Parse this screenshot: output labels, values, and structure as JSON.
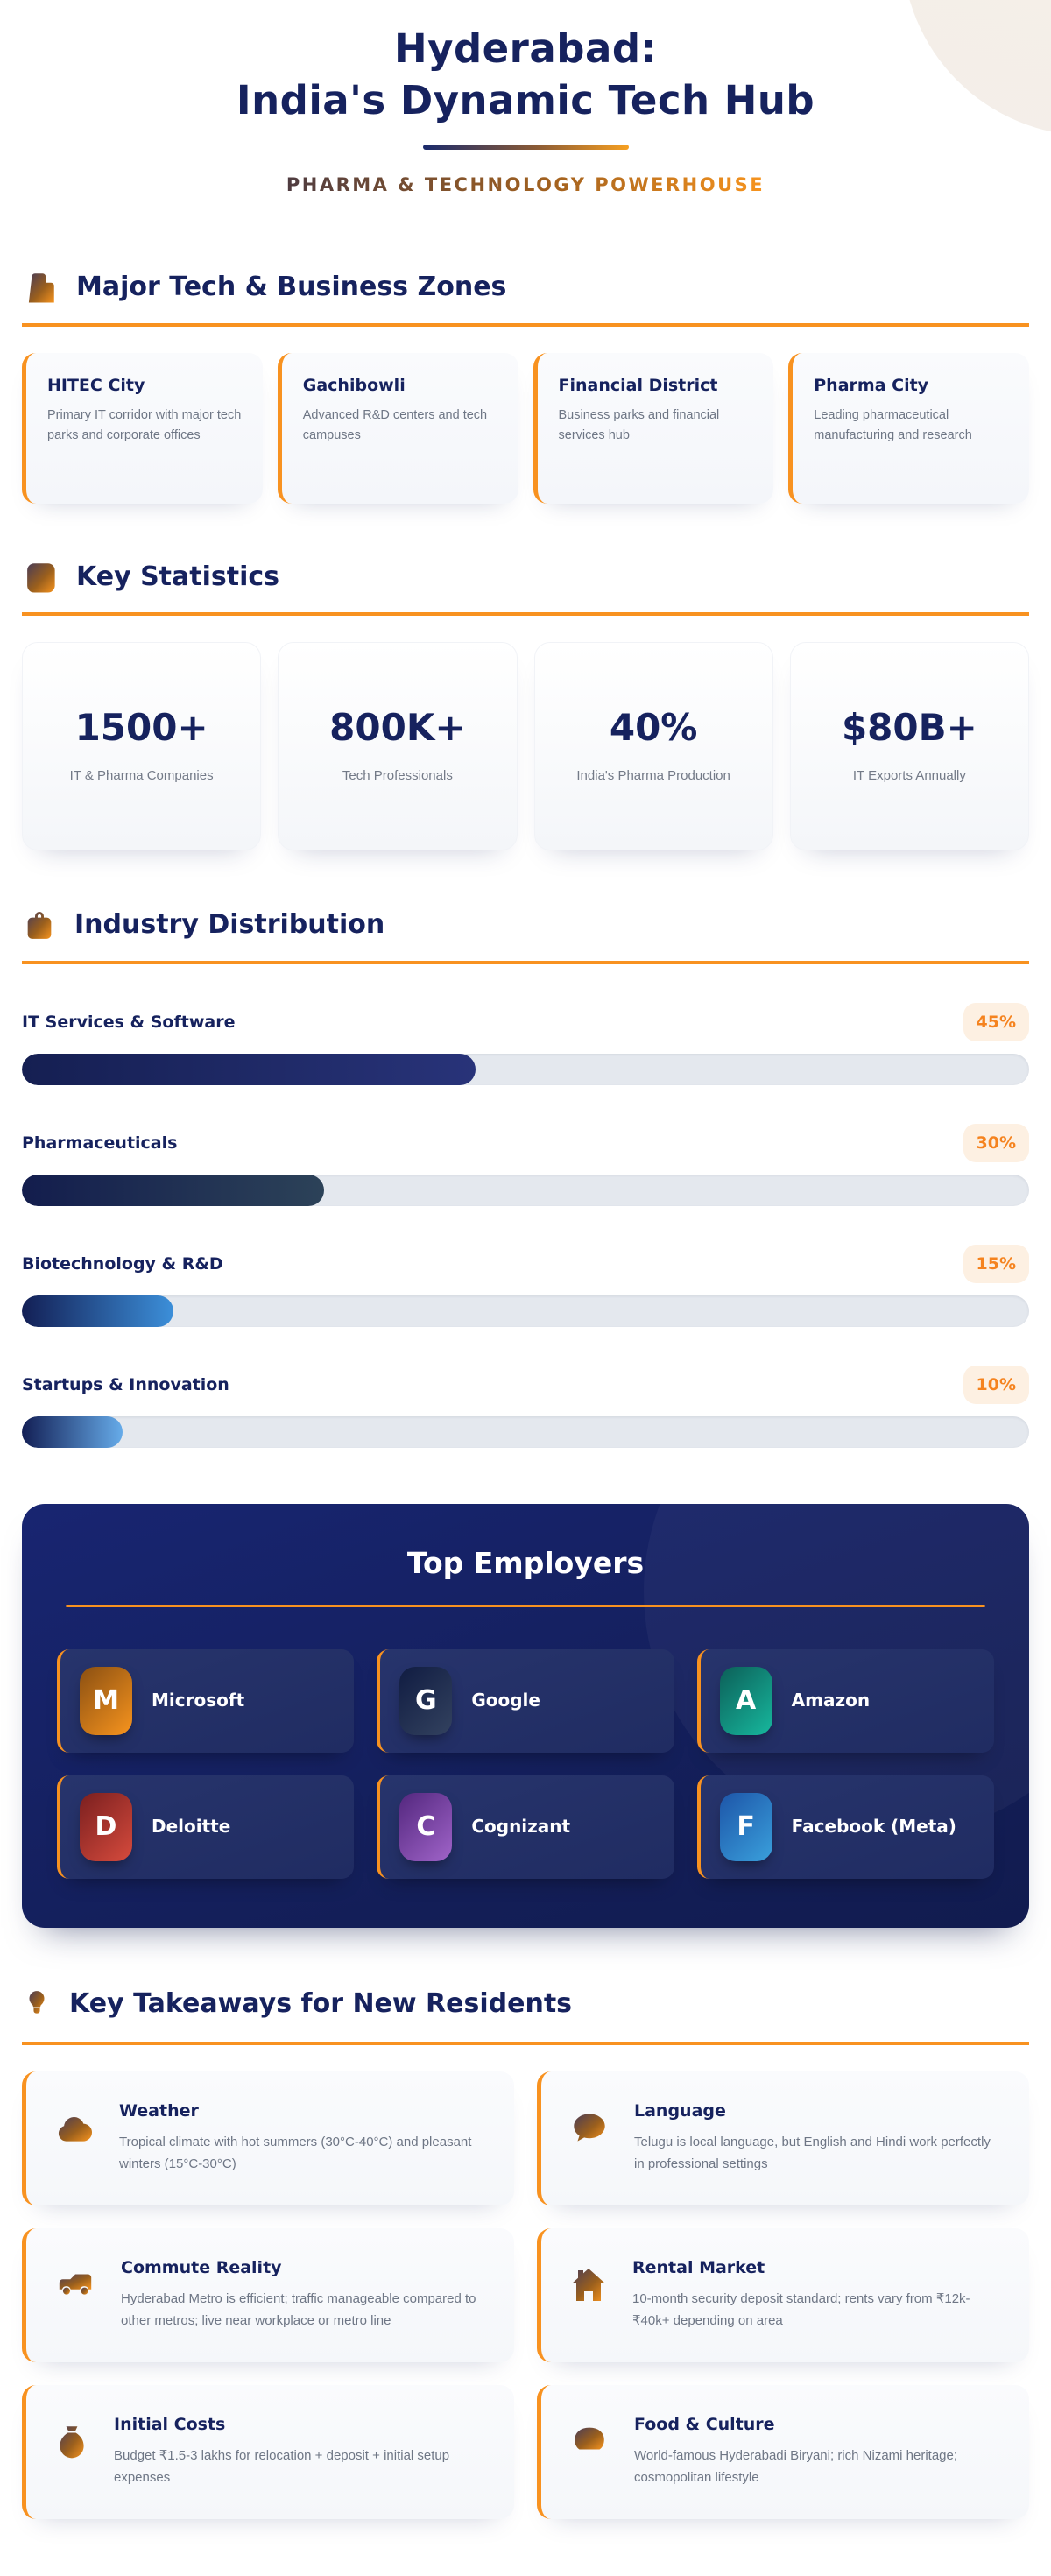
{
  "header": {
    "title_line1": "Hyderabad:",
    "title_line2": "India's Dynamic Tech Hub",
    "subtitle": "PHARMA & TECHNOLOGY POWERHOUSE"
  },
  "colors": {
    "navy": "#16225e",
    "orange": "#f89220",
    "badge_text": "#f5831f",
    "badge_bg": "#fdf0e2",
    "body_text": "#6e7685",
    "panel_bg": "#131e57",
    "track": "#e4e8ee"
  },
  "zones": {
    "title": "Major Tech & Business Zones",
    "cards": [
      {
        "title": "HITEC City",
        "desc": "Primary IT corridor with major tech parks and corporate offices"
      },
      {
        "title": "Gachibowli",
        "desc": "Advanced R&D centers and tech campuses"
      },
      {
        "title": "Financial District",
        "desc": "Business parks and financial services hub"
      },
      {
        "title": "Pharma City",
        "desc": "Leading pharmaceutical manufacturing and research"
      }
    ]
  },
  "stats": {
    "title": "Key Statistics",
    "cards": [
      {
        "value": "1500+",
        "label": "IT & Pharma Companies"
      },
      {
        "value": "800K+",
        "label": "Tech Professionals"
      },
      {
        "value": "40%",
        "label": "India's Pharma Production"
      },
      {
        "value": "$80B+",
        "label": "IT Exports Annually"
      }
    ]
  },
  "industry": {
    "title": "Industry Distribution",
    "bars": [
      {
        "label": "IT Services & Software",
        "pct": 45,
        "badge": "45%",
        "grad": {
          "from": "#151f52",
          "to": "#283379"
        }
      },
      {
        "label": "Pharmaceuticals",
        "pct": 30,
        "badge": "30%",
        "grad": {
          "from": "#131d4d",
          "to": "#2c4258"
        }
      },
      {
        "label": "Biotechnology & R&D",
        "pct": 15,
        "badge": "15%",
        "grad": {
          "from": "#131f55",
          "to": "#3c8fd9"
        }
      },
      {
        "label": "Startups & Innovation",
        "pct": 10,
        "badge": "10%",
        "grad": {
          "from": "#131f55",
          "to": "#66abe9"
        }
      }
    ]
  },
  "chart_data": {
    "type": "bar",
    "title": "Industry Distribution",
    "categories": [
      "IT Services & Software",
      "Pharmaceuticals",
      "Biotechnology & R&D",
      "Startups & Innovation"
    ],
    "values": [
      45,
      30,
      15,
      10
    ],
    "unit": "%",
    "xlim": [
      0,
      100
    ]
  },
  "employers": {
    "title": "Top Employers",
    "items": [
      {
        "letter": "M",
        "name": "Microsoft",
        "grad": {
          "from": "#8a4f12",
          "to": "#f7941e"
        }
      },
      {
        "letter": "G",
        "name": "Google",
        "grad": {
          "from": "#101c42",
          "to": "#33425f"
        }
      },
      {
        "letter": "A",
        "name": "Amazon",
        "grad": {
          "from": "#0c5f58",
          "to": "#17b89e"
        }
      },
      {
        "letter": "D",
        "name": "Deloitte",
        "grad": {
          "from": "#7a1f1f",
          "to": "#d64b3d"
        }
      },
      {
        "letter": "C",
        "name": "Cognizant",
        "grad": {
          "from": "#53277e",
          "to": "#a064c9"
        }
      },
      {
        "letter": "F",
        "name": "Facebook (Meta)",
        "grad": {
          "from": "#1d55a8",
          "to": "#3aa0dc"
        }
      }
    ]
  },
  "takeaways": {
    "title": "Key Takeaways for New Residents",
    "cards": [
      {
        "icon": "cloud-icon",
        "title": "Weather",
        "desc": "Tropical climate with hot summers (30°C-40°C) and pleasant winters (15°C-30°C)"
      },
      {
        "icon": "speech-bubble-icon",
        "title": "Language",
        "desc": "Telugu is local language, but English and Hindi work perfectly in professional settings"
      },
      {
        "icon": "truck-icon",
        "title": "Commute Reality",
        "desc": "Hyderabad Metro is efficient; traffic manageable compared to other metros; live near workplace or metro line"
      },
      {
        "icon": "house-icon",
        "title": "Rental Market",
        "desc": "10-month security deposit standard; rents vary from ₹12k-₹40k+ depending on area"
      },
      {
        "icon": "money-bag-icon",
        "title": "Initial Costs",
        "desc": "Budget ₹1.5-3 lakhs for relocation + deposit + initial setup expenses"
      },
      {
        "icon": "pot-icon",
        "title": "Food & Culture",
        "desc": "World-famous Hyderabadi Biryani; rich Nizami heritage; cosmopolitan lifestyle"
      }
    ]
  }
}
